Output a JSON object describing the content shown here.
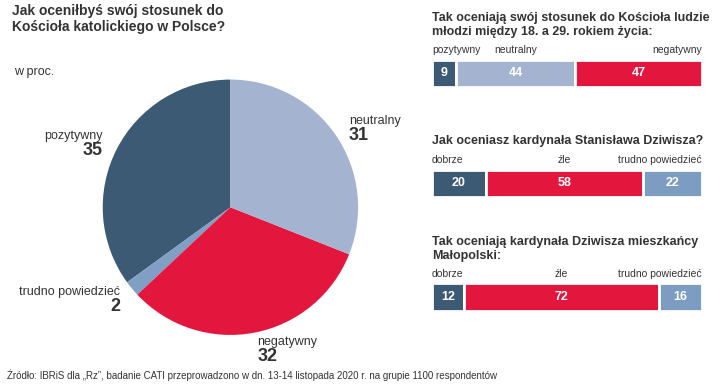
{
  "chart_data": [
    {
      "type": "pie",
      "title": "Jak oceniłbyś swój stosunek do Kościoła katolickiego w Polsce?",
      "subtitle": "w proc.",
      "categories": [
        "pozytywny",
        "trudno powiedzieć",
        "negatywny",
        "neutralny"
      ],
      "values": [
        35,
        2,
        32,
        31
      ],
      "colors": [
        "#3d5a74",
        "#7f9fc4",
        "#e3173e",
        "#a4b3cf"
      ],
      "data_labels": true
    },
    {
      "type": "bar",
      "orientation": "horizontal",
      "stacked": true,
      "data_labels": true,
      "tick_labels": false,
      "title": "Tak oceniają swój stosunek do Kościoła ludzie młodzi między 18. a 29. rokiem życia:",
      "categories": [
        null
      ],
      "xlim": [
        0,
        100
      ],
      "series": [
        {
          "name": "pozytywny",
          "color": "#3d5a74",
          "values": [
            9
          ]
        },
        {
          "name": "neutralny",
          "color": "#a4b3cf",
          "values": [
            44
          ]
        },
        {
          "name": "negatywny",
          "color": "#e3173e",
          "values": [
            47
          ]
        }
      ]
    },
    {
      "type": "bar",
      "orientation": "horizontal",
      "stacked": true,
      "data_labels": true,
      "tick_labels": false,
      "title": "Jak oceniasz kardynała Stanisława Dziwisza?",
      "categories": [
        null
      ],
      "xlim": [
        0,
        100
      ],
      "series": [
        {
          "name": "dobrze",
          "color": "#3d5a74",
          "values": [
            20
          ]
        },
        {
          "name": "źle",
          "color": "#e3173e",
          "values": [
            58
          ]
        },
        {
          "name": "trudno powiedzieć",
          "color": "#7d9cc1",
          "values": [
            22
          ]
        }
      ]
    },
    {
      "type": "bar",
      "orientation": "horizontal",
      "stacked": true,
      "data_labels": true,
      "tick_labels": false,
      "title": "Tak oceniają kardynała Dziwisza mieszkańcy Małopolski:",
      "categories": [
        null
      ],
      "xlim": [
        0,
        100
      ],
      "series": [
        {
          "name": "dobrze",
          "color": "#3d5a74",
          "values": [
            12
          ]
        },
        {
          "name": "źle",
          "color": "#e3173e",
          "values": [
            72
          ]
        },
        {
          "name": "trudno powiedzieć",
          "color": "#7d9cc1",
          "values": [
            16
          ]
        }
      ]
    }
  ],
  "source": "Źródło: IBRiS dla „Rz”, badanie CATI przeprowadzono w dn. 13-14 listopada 2020 r. na grupie 1100 respondentów"
}
